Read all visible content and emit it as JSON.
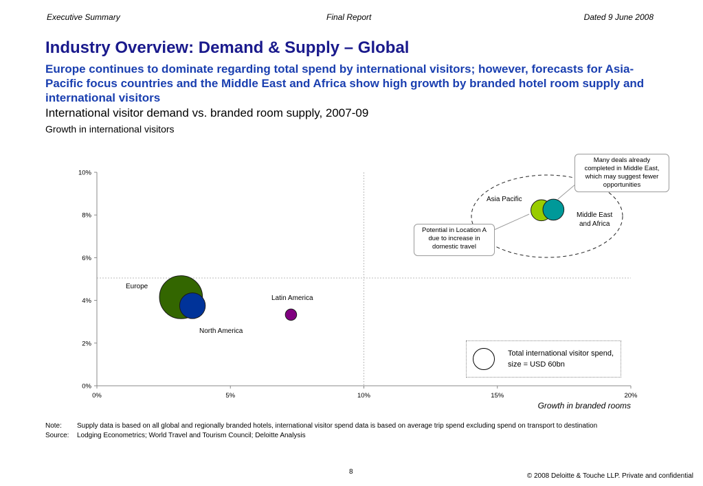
{
  "header": {
    "left": "Executive Summary",
    "center": "Final Report",
    "right": "Dated 9 June 2008"
  },
  "title": "Industry Overview: Demand & Supply – Global",
  "subtitle": "Europe continues to dominate regarding total spend by international visitors; however, forecasts for Asia-Pacific focus countries and the Middle East and Africa show high growth by branded hotel room supply and international visitors",
  "chart_data": {
    "type": "scatter",
    "title": "International visitor demand vs. branded room supply, 2007-09",
    "ylabel": "Growth in international visitors",
    "xlabel": "Growth in branded rooms",
    "xlim": [
      0,
      0.2
    ],
    "ylim": [
      0,
      0.1
    ],
    "x_ticks": [
      0,
      0.05,
      0.1,
      0.15,
      0.2
    ],
    "x_tick_labels": [
      "0%",
      "5%",
      "10%",
      "15%",
      "20%"
    ],
    "y_ticks": [
      0,
      0.02,
      0.04,
      0.06,
      0.08,
      0.1
    ],
    "y_tick_labels": [
      "0%",
      "2%",
      "4%",
      "6%",
      "8%",
      "10%"
    ],
    "reference_lines": {
      "x": 0.1,
      "y": 0.0505
    },
    "series": [
      {
        "name": "Europe",
        "x": 0.0315,
        "y": 0.0415,
        "size": 230,
        "color": "#336600"
      },
      {
        "name": "North America",
        "x": 0.0358,
        "y": 0.0375,
        "size": 82,
        "color": "#003399"
      },
      {
        "name": "Latin America",
        "x": 0.0727,
        "y": 0.0333,
        "size": 16,
        "color": "#800080"
      },
      {
        "name": "Asia Pacific",
        "x": 0.1665,
        "y": 0.0822,
        "size": 55,
        "color": "#99cc00"
      },
      {
        "name": "Middle East and Africa",
        "x": 0.171,
        "y": 0.0825,
        "size": 55,
        "color": "#009999"
      }
    ],
    "labels": {
      "europe": "Europe",
      "north_america": "North America",
      "latin_america": "Latin America",
      "asia_pacific": "Asia Pacific",
      "middle_east_line1": "Middle East",
      "middle_east_line2": "and Africa"
    },
    "annotations": {
      "middle_east": "Many deals already completed in Middle East, which may suggest fewer opportunities",
      "asia_pacific": "Potential in Location A due to increase in domestic travel"
    },
    "legend": {
      "text": "Total international visitor spend, size = USD 60bn",
      "size_usd_bn": 60,
      "placement": "bottom-right"
    }
  },
  "note_label": "Note:",
  "note_text": "Supply data is based on all global and regionally branded hotels, international visitor spend data is based on average trip spend excluding spend on transport to destination",
  "source_label": "Source:",
  "source_text": "Lodging Econometrics; World Travel and Tourism Council; Deloitte Analysis",
  "page_number": "8",
  "copyright": "© 2008 Deloitte & Touche LLP. Private and confidential"
}
